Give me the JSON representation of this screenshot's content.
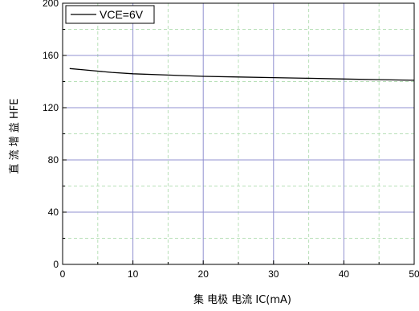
{
  "chart_data": {
    "type": "line",
    "title": "",
    "xlabel": "集 电极 电流 IC(mA)",
    "ylabel": "直 流 增 益  HFE",
    "xlim": [
      0,
      50
    ],
    "ylim": [
      0,
      200
    ],
    "x_ticks": [
      0,
      10,
      20,
      30,
      40,
      50
    ],
    "y_ticks": [
      0,
      40,
      80,
      120,
      160,
      200
    ],
    "grid": true,
    "legend_position": "top-left",
    "series": [
      {
        "name": "VCE=6V",
        "color": "#000000",
        "x": [
          1,
          3,
          5,
          7,
          10,
          15,
          20,
          25,
          30,
          35,
          40,
          45,
          50
        ],
        "y": [
          150,
          149,
          148,
          147,
          146,
          145,
          144,
          143.5,
          143,
          142.5,
          142,
          141.5,
          141
        ]
      }
    ]
  }
}
